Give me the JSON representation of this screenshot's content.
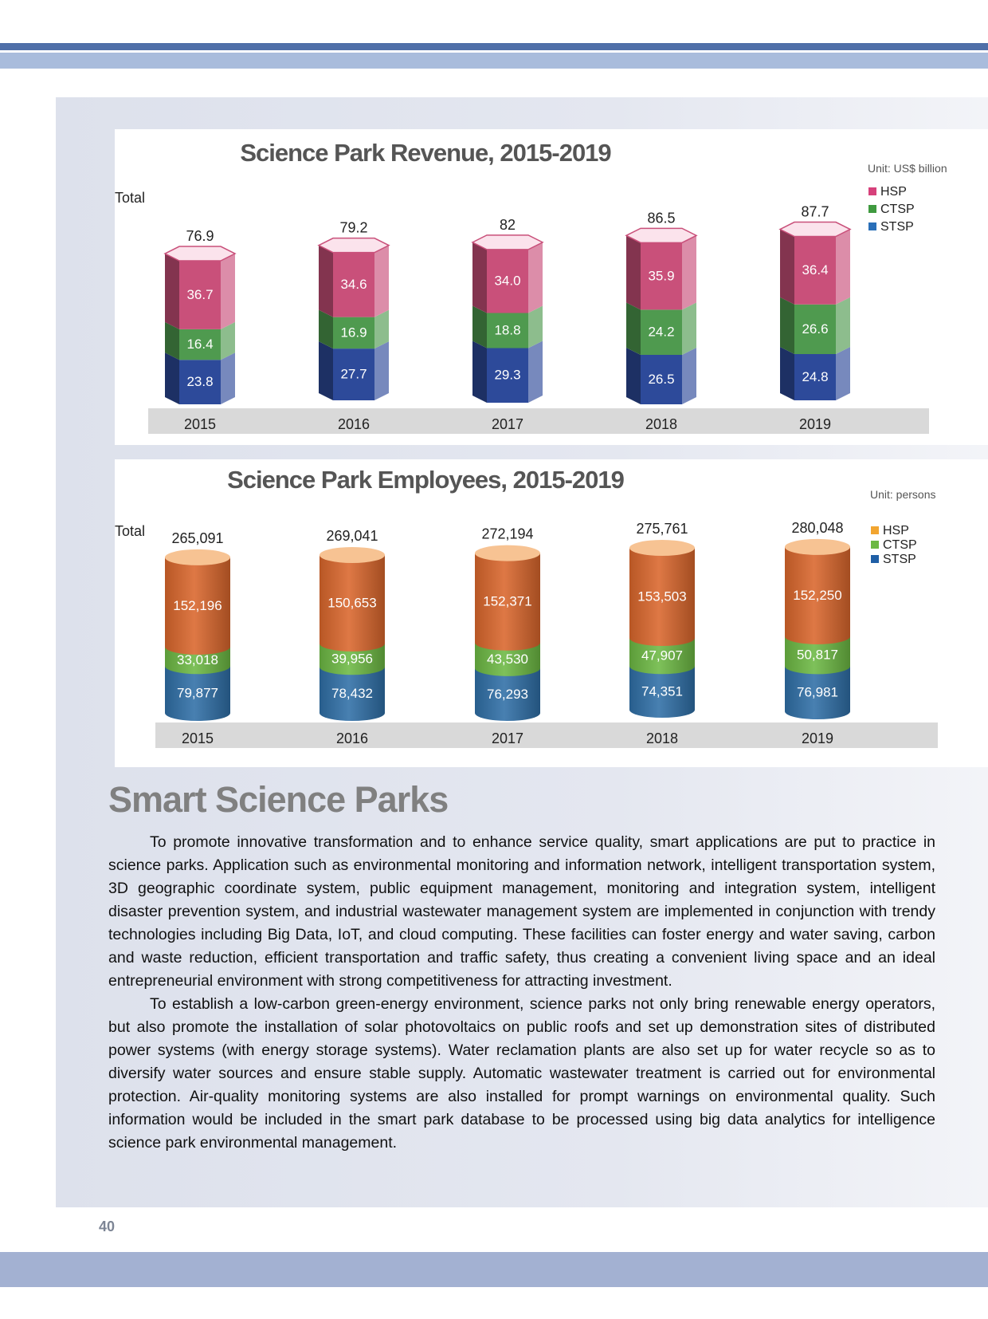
{
  "page_number": "40",
  "section": {
    "heading": "Smart Science Parks",
    "paragraphs": [
      "To promote innovative transformation and to enhance service quality, smart applications are put to practice in science parks. Application such as environmental monitoring and information network, intelligent transportation system, 3D geographic coordinate system, public equipment management, monitoring and integration system, intelligent disaster prevention system, and industrial wastewater management system are implemented in conjunction with trendy technologies including Big Data, IoT, and cloud computing. These facilities can foster energy and water saving, carbon and waste reduction, efficient transportation and traffic safety, thus creating a convenient living space and an ideal entrepreneurial environment with strong competitiveness for attracting investment.",
      "To establish a low-carbon green-energy environment, science parks not only bring renewable energy operators, but also promote the installation of solar photovoltaics on public roofs and set up demonstration sites of distributed power systems (with energy storage systems). Water reclamation plants are also set up for water recycle so as to diversify water sources and ensure stable supply. Automatic wastewater treatment is carried out for environmental protection. Air-quality monitoring systems are also installed for prompt warnings on environmental quality. Such information would be included in the smart park database to be processed using big data analytics for intelligence science park environmental management."
    ]
  },
  "chart_data": [
    {
      "type": "bar",
      "stacked": true,
      "title": "Science Park Revenue, 2015-2019",
      "unit": "Unit: US$ billion",
      "total_label": "Total",
      "categories": [
        "2015",
        "2016",
        "2017",
        "2018",
        "2019"
      ],
      "totals": [
        "76.9",
        "79.2",
        "82",
        "86.5",
        "87.7"
      ],
      "series": [
        {
          "name": "STSP",
          "values": [
            23.8,
            27.7,
            29.3,
            26.5,
            24.8
          ],
          "labels": [
            "23.8",
            "27.7",
            "29.3",
            "26.5",
            "24.8"
          ],
          "color": "#2d4a9a"
        },
        {
          "name": "CTSP",
          "values": [
            16.4,
            16.9,
            18.8,
            24.2,
            26.6
          ],
          "labels": [
            "16.4",
            "16.9",
            "18.8",
            "24.2",
            "26.6"
          ],
          "color": "#4f9a4f"
        },
        {
          "name": "HSP",
          "values": [
            36.7,
            34.6,
            34.0,
            35.9,
            36.4
          ],
          "labels": [
            "36.7",
            "34.6",
            "34.0",
            "35.9",
            "36.4"
          ],
          "color": "#c9507a"
        }
      ],
      "legend": [
        {
          "name": "HSP",
          "color": "#d6417b"
        },
        {
          "name": "CTSP",
          "color": "#3f9a3f"
        },
        {
          "name": "STSP",
          "color": "#2a6fb8"
        }
      ],
      "legend_position": "right"
    },
    {
      "type": "bar",
      "stacked": true,
      "title": "Science Park Employees, 2015-2019",
      "unit": "Unit: persons",
      "total_label": "Total",
      "categories": [
        "2015",
        "2016",
        "2017",
        "2018",
        "2019"
      ],
      "totals": [
        "265,091",
        "269,041",
        "272,194",
        "275,761",
        "280,048"
      ],
      "series": [
        {
          "name": "STSP",
          "values": [
            79877,
            78432,
            76293,
            74351,
            76981
          ],
          "labels": [
            "79,877",
            "78,432",
            "76,293",
            "74,351",
            "76,981"
          ],
          "color": "#2f6fa6"
        },
        {
          "name": "CTSP",
          "values": [
            33018,
            39956,
            43530,
            47907,
            50817
          ],
          "labels": [
            "33,018",
            "39,956",
            "43,530",
            "47,907",
            "50,817"
          ],
          "color": "#6cb843"
        },
        {
          "name": "HSP",
          "values": [
            152196,
            150653,
            152371,
            153503,
            152250
          ],
          "labels": [
            "152,196",
            "150,653",
            "152,371",
            "153,503",
            "152,250"
          ],
          "color": "#d9662c"
        }
      ],
      "legend": [
        {
          "name": "HSP",
          "color": "#f2a530"
        },
        {
          "name": "CTSP",
          "color": "#6cb843"
        },
        {
          "name": "STSP",
          "color": "#1f5fa6"
        }
      ],
      "legend_position": "right"
    }
  ]
}
